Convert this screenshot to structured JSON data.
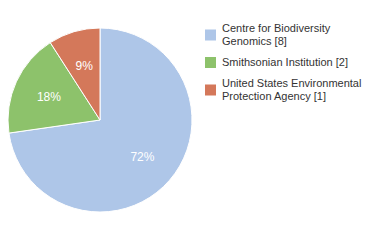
{
  "chart_data": {
    "type": "pie",
    "categories": [
      "Centre for Biodiversity\nGenomics [8]",
      "Smithsonian Institution [2]",
      "United States Environmental\nProtection Agency [1]"
    ],
    "values": [
      72,
      18,
      9
    ],
    "value_labels": [
      "72%",
      "18%",
      "9%"
    ],
    "colors": [
      "#aec6e8",
      "#8dc26b",
      "#d4785a"
    ],
    "data_labels": true,
    "legend": "right"
  }
}
